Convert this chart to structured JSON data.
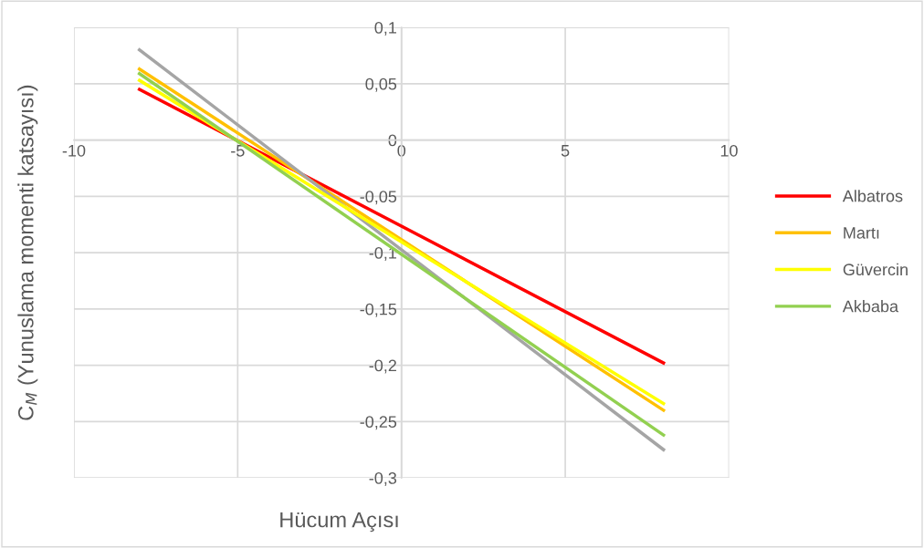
{
  "chart_data": {
    "type": "line",
    "xlabel": "Hücum Açısı",
    "ylabel": "C$_{M}$ (Yunuslama momenti katsayısı)",
    "x": [
      -8,
      8
    ],
    "series": [
      {
        "name": "Albatros",
        "color": "#ff0000",
        "values": [
          0.045,
          -0.198
        ]
      },
      {
        "name": "Martı",
        "color": "#ffc000",
        "values": [
          0.063,
          -0.24
        ]
      },
      {
        "color": "#a5a5a5",
        "values": [
          0.08,
          -0.275
        ]
      },
      {
        "name": "Güvercin",
        "color": "#ffff00",
        "values": [
          0.053,
          -0.234
        ]
      },
      {
        "name": "Akbaba",
        "color": "#92d050",
        "values": [
          0.059,
          -0.262
        ]
      }
    ],
    "xlim": [
      -10,
      10
    ],
    "xticks": [
      -10,
      -5,
      0,
      5,
      10
    ],
    "ylim": [
      -0.3,
      0.1
    ],
    "yticks": [
      {
        "value": 0.1,
        "label": "0,1"
      },
      {
        "value": 0.05,
        "label": "0,05"
      },
      0,
      {
        "value": -0.05,
        "label": "-0,05"
      },
      {
        "value": -0.1,
        "label": "-0,1"
      },
      {
        "value": -0.15,
        "label": "-0,15"
      },
      {
        "value": -0.2,
        "label": "-0,2"
      },
      {
        "value": -0.25,
        "label": "-0,25"
      },
      {
        "value": -0.3,
        "label": "-0,3"
      }
    ],
    "grid": true,
    "legend": "right",
    "marker": "none",
    "line_style": "solid"
  }
}
